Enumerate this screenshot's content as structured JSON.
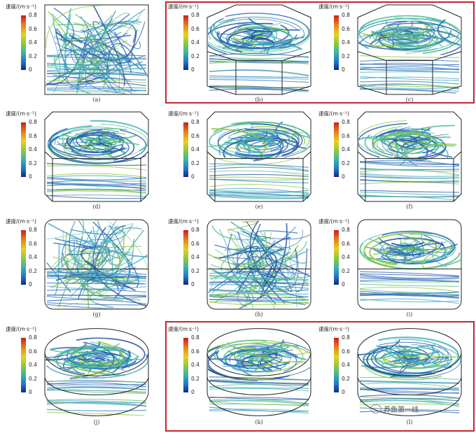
{
  "colorbar": {
    "title": "速度/(m·s⁻¹)",
    "ticks": [
      "0.8",
      "0.6",
      "0.4",
      "0.2",
      "0"
    ]
  },
  "panels": [
    {
      "caption": "(a)",
      "shape": "square-box",
      "swirl_icon": "chaotic-flow"
    },
    {
      "caption": "(b)",
      "shape": "octagon-prism",
      "swirl_icon": "vortex-flow"
    },
    {
      "caption": "(c)",
      "shape": "octagon-prism",
      "swirl_icon": "vortex-flow"
    },
    {
      "caption": "(d)",
      "shape": "chamfered-prism",
      "swirl_icon": "vortex-flow"
    },
    {
      "caption": "(e)",
      "shape": "chamfered-prism",
      "swirl_icon": "vortex-flow"
    },
    {
      "caption": "(f)",
      "shape": "chamfered-prism",
      "swirl_icon": "vortex-flow"
    },
    {
      "caption": "(g)",
      "shape": "rounded-box",
      "swirl_icon": "chaotic-flow"
    },
    {
      "caption": "(h)",
      "shape": "rounded-box",
      "swirl_icon": "chaotic-flow"
    },
    {
      "caption": "(i)",
      "shape": "rounded-box",
      "swirl_icon": "vortex-flow"
    },
    {
      "caption": "(j)",
      "shape": "cylinder",
      "swirl_icon": "vortex-flow"
    },
    {
      "caption": "(k)",
      "shape": "cylinder",
      "swirl_icon": "vortex-flow"
    },
    {
      "caption": "(l)",
      "shape": "cylinder",
      "swirl_icon": "vortex-flow"
    }
  ],
  "watermark": {
    "text": "养鱼第一线",
    "icon": "wechat-icon"
  },
  "colors": {
    "highlight": "#c0272d",
    "flow_low": "#1e50a0",
    "flow_mid": "#3cb4b4",
    "flow_high": "#8cc83c"
  }
}
